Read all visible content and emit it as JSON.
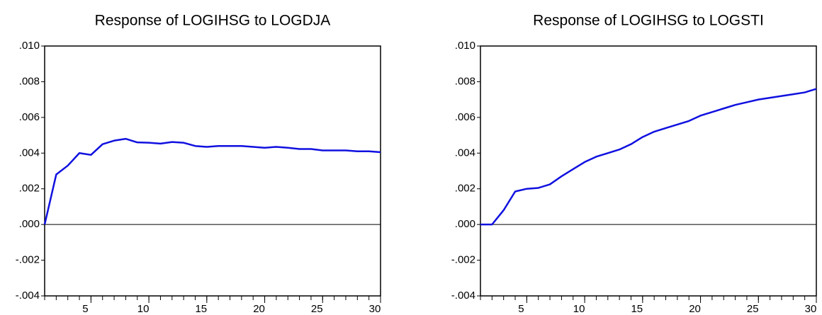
{
  "chart_data": [
    {
      "type": "line",
      "title": "Response of LOGIHSG to LOGDJA",
      "x": [
        1,
        2,
        3,
        4,
        5,
        6,
        7,
        8,
        9,
        10,
        11,
        12,
        13,
        14,
        15,
        16,
        17,
        18,
        19,
        20,
        21,
        22,
        23,
        24,
        25,
        26,
        27,
        28,
        29,
        30
      ],
      "values": [
        0,
        0.0028,
        0.0033,
        0.004,
        0.0039,
        0.0045,
        0.0047,
        0.0048,
        0.0046,
        0.00458,
        0.00453,
        0.00462,
        0.00458,
        0.0044,
        0.00435,
        0.0044,
        0.0044,
        0.0044,
        0.00435,
        0.0043,
        0.00435,
        0.0043,
        0.00423,
        0.00423,
        0.00415,
        0.00415,
        0.00415,
        0.0041,
        0.0041,
        0.00405
      ],
      "color": "#1010e0",
      "xlim": [
        1,
        30
      ],
      "xticks": [
        5,
        10,
        15,
        20,
        25,
        30
      ],
      "ylim": [
        -0.004,
        0.01
      ],
      "yticks": [
        {
          "value": -0.004,
          "label": "-.004"
        },
        {
          "value": -0.002,
          "label": "-.002"
        },
        {
          "value": 0,
          "label": ".000"
        },
        {
          "value": 0.002,
          "label": ".002"
        },
        {
          "value": 0.004,
          "label": ".004"
        },
        {
          "value": 0.006,
          "label": ".006"
        },
        {
          "value": 0.008,
          "label": ".008"
        },
        {
          "value": 0.01,
          "label": ".010"
        }
      ],
      "zero_line": true
    },
    {
      "type": "line",
      "title": "Response of LOGIHSG to LOGSTI",
      "x": [
        1,
        2,
        3,
        4,
        5,
        6,
        7,
        8,
        9,
        10,
        11,
        12,
        13,
        14,
        15,
        16,
        17,
        18,
        19,
        20,
        21,
        22,
        23,
        24,
        25,
        26,
        27,
        28,
        29,
        30
      ],
      "values": [
        0,
        0,
        0.0008,
        0.00185,
        0.002,
        0.00205,
        0.00225,
        0.0027,
        0.0031,
        0.0035,
        0.0038,
        0.004,
        0.0042,
        0.0045,
        0.0049,
        0.0052,
        0.0054,
        0.0056,
        0.0058,
        0.0061,
        0.0063,
        0.0065,
        0.0067,
        0.00685,
        0.007,
        0.0071,
        0.0072,
        0.0073,
        0.0074,
        0.0076
      ],
      "color": "#1010e0",
      "xlim": [
        1,
        30
      ],
      "xticks": [
        5,
        10,
        15,
        20,
        25,
        30
      ],
      "ylim": [
        -0.004,
        0.01
      ],
      "yticks": [
        {
          "value": -0.004,
          "label": "-.004"
        },
        {
          "value": -0.002,
          "label": "-.002"
        },
        {
          "value": 0,
          "label": ".000"
        },
        {
          "value": 0.002,
          "label": ".002"
        },
        {
          "value": 0.004,
          "label": ".004"
        },
        {
          "value": 0.006,
          "label": ".006"
        },
        {
          "value": 0.008,
          "label": ".008"
        },
        {
          "value": 0.01,
          "label": ".010"
        }
      ],
      "zero_line": true
    }
  ]
}
